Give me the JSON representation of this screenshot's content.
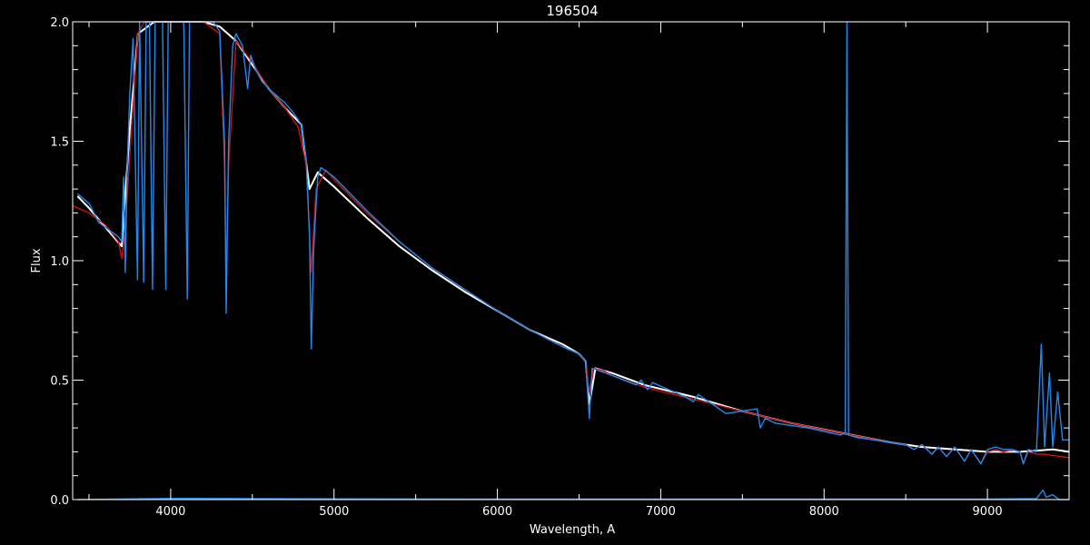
{
  "chart_data": {
    "type": "line",
    "title": "196504",
    "xlabel": "Wavelength, A",
    "ylabel": "Flux",
    "xlim": [
      3400,
      9500
    ],
    "ylim": [
      0.0,
      2.0
    ],
    "x_ticks": [
      4000,
      5000,
      6000,
      7000,
      8000,
      9000
    ],
    "x_tick_labels": [
      "4000",
      "5000",
      "6000",
      "7000",
      "8000",
      "9000"
    ],
    "y_ticks": [
      0.0,
      0.5,
      1.0,
      1.5,
      2.0
    ],
    "y_tick_labels": [
      "0.0",
      "0.5",
      "1.0",
      "1.5",
      "2.0"
    ],
    "background_color": "#000000",
    "axis_color": "#ffffff",
    "grid": false,
    "series": [
      {
        "color": "#ffffff",
        "x": [
          3430,
          3500,
          3600,
          3700,
          3750,
          3800,
          3900,
          4000,
          4100,
          4200,
          4300,
          4400,
          4500,
          4600,
          4700,
          4800,
          4850,
          4900,
          5000,
          5200,
          5400,
          5600,
          5800,
          6000,
          6200,
          6400,
          6500,
          6540,
          6563,
          6600,
          6700,
          6900,
          7200,
          7500,
          7800,
          8100,
          8400,
          8600,
          8800,
          9000,
          9200,
          9400,
          9500
        ],
        "y": [
          1.27,
          1.22,
          1.14,
          1.06,
          1.55,
          1.95,
          2.0,
          2.0,
          2.0,
          2.0,
          1.98,
          1.92,
          1.82,
          1.72,
          1.64,
          1.57,
          1.3,
          1.37,
          1.31,
          1.18,
          1.06,
          0.96,
          0.87,
          0.79,
          0.71,
          0.65,
          0.61,
          0.58,
          0.4,
          0.55,
          0.53,
          0.48,
          0.43,
          0.37,
          0.32,
          0.28,
          0.24,
          0.22,
          0.21,
          0.2,
          0.2,
          0.21,
          0.2
        ]
      },
      {
        "color": "#cc1111",
        "x": [
          3400,
          3500,
          3600,
          3680,
          3700,
          3720,
          3760,
          3800,
          3840,
          3880,
          3930,
          3970,
          4000,
          4050,
          4090,
          4102,
          4110,
          4150,
          4200,
          4300,
          4330,
          4340,
          4355,
          4400,
          4500,
          4600,
          4700,
          4780,
          4830,
          4861,
          4890,
          4950,
          5000,
          5200,
          5400,
          5600,
          5800,
          6000,
          6200,
          6400,
          6500,
          6540,
          6563,
          6590,
          6650,
          6700,
          6900,
          7200,
          7500,
          7800,
          8100,
          8400,
          8500,
          8550,
          8600,
          8660,
          8700,
          8750,
          8800,
          8860,
          8900,
          8960,
          9000,
          9050,
          9100,
          9150,
          9200,
          9220,
          9250,
          9300,
          9350,
          9400,
          9500
        ],
        "y": [
          1.23,
          1.2,
          1.15,
          1.08,
          1.01,
          1.12,
          1.55,
          1.95,
          2.0,
          2.0,
          2.0,
          2.0,
          2.0,
          2.0,
          2.0,
          2.0,
          2.0,
          2.0,
          2.0,
          1.95,
          1.4,
          0.92,
          1.4,
          1.92,
          1.83,
          1.72,
          1.64,
          1.56,
          1.4,
          0.95,
          1.3,
          1.38,
          1.34,
          1.2,
          1.08,
          0.97,
          0.88,
          0.79,
          0.71,
          0.64,
          0.61,
          0.58,
          0.45,
          0.55,
          0.54,
          0.52,
          0.47,
          0.42,
          0.37,
          0.32,
          0.28,
          0.24,
          0.23,
          0.21,
          0.23,
          0.19,
          0.22,
          0.18,
          0.22,
          0.16,
          0.21,
          0.15,
          0.2,
          0.21,
          0.2,
          0.21,
          0.2,
          0.15,
          0.2,
          0.19,
          0.19,
          0.185,
          0.175
        ]
      },
      {
        "color": "#2288ee",
        "x": [
          3430,
          3500,
          3560,
          3620,
          3680,
          3700,
          3712,
          3722,
          3734,
          3750,
          3770,
          3797,
          3810,
          3835,
          3850,
          3870,
          3889,
          3905,
          3930,
          3950,
          3970,
          3985,
          4000,
          4040,
          4080,
          4102,
          4115,
          4150,
          4200,
          4260,
          4300,
          4330,
          4340,
          4355,
          4380,
          4400,
          4440,
          4471,
          4490,
          4520,
          4560,
          4600,
          4650,
          4700,
          4750,
          4800,
          4830,
          4850,
          4861,
          4875,
          4900,
          4920,
          5000,
          5200,
          5400,
          5600,
          5800,
          6000,
          6200,
          6400,
          6500,
          6540,
          6563,
          6580,
          6620,
          6700,
          6850,
          6880,
          6920,
          6950,
          7150,
          7200,
          7230,
          7400,
          7590,
          7610,
          7640,
          7700,
          7900,
          8100,
          8130,
          8140,
          8150,
          8200,
          8400,
          8500,
          8550,
          8600,
          8660,
          8700,
          8750,
          8800,
          8860,
          8900,
          8960,
          9000,
          9050,
          9100,
          9150,
          9200,
          9220,
          9250,
          9300,
          9330,
          9350,
          9380,
          9400,
          9430,
          9460,
          9500
        ],
        "y": [
          1.28,
          1.24,
          1.16,
          1.13,
          1.1,
          1.08,
          1.35,
          0.95,
          1.4,
          1.7,
          1.93,
          0.92,
          2.0,
          0.91,
          2.0,
          2.0,
          0.88,
          2.0,
          2.0,
          2.0,
          0.88,
          2.0,
          2.0,
          2.0,
          2.0,
          0.84,
          2.0,
          2.0,
          2.0,
          2.0,
          1.96,
          1.5,
          0.78,
          1.5,
          1.9,
          1.95,
          1.9,
          1.72,
          1.86,
          1.8,
          1.75,
          1.72,
          1.69,
          1.66,
          1.62,
          1.57,
          1.42,
          1.1,
          0.63,
          1.05,
          1.35,
          1.39,
          1.35,
          1.21,
          1.08,
          0.97,
          0.88,
          0.79,
          0.71,
          0.64,
          0.61,
          0.58,
          0.34,
          0.55,
          0.54,
          0.52,
          0.48,
          0.5,
          0.46,
          0.49,
          0.43,
          0.41,
          0.44,
          0.36,
          0.38,
          0.3,
          0.34,
          0.32,
          0.3,
          0.27,
          0.28,
          2.0,
          0.27,
          0.26,
          0.24,
          0.23,
          0.21,
          0.23,
          0.19,
          0.22,
          0.18,
          0.22,
          0.16,
          0.21,
          0.15,
          0.21,
          0.22,
          0.21,
          0.21,
          0.2,
          0.15,
          0.21,
          0.2,
          0.65,
          0.22,
          0.53,
          0.22,
          0.45,
          0.25,
          0.25
        ]
      },
      {
        "color": "#2288ee",
        "x": [
          3430,
          4000,
          5000,
          6000,
          7000,
          8000,
          9000,
          9300,
          9340,
          9360,
          9400,
          9440,
          9500
        ],
        "y": [
          0.0,
          0.005,
          0.003,
          0.002,
          0.002,
          0.002,
          0.002,
          0.004,
          0.04,
          0.01,
          0.02,
          0.0,
          0.0
        ]
      }
    ]
  }
}
